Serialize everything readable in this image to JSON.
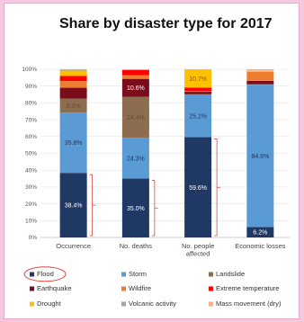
{
  "chart_data": {
    "type": "bar",
    "stacked": true,
    "title": "Share by disaster type for 2017",
    "xlabel": "",
    "ylabel": "",
    "ylim": [
      0,
      100
    ],
    "yticks": [
      "0%",
      "10%",
      "20%",
      "30%",
      "40%",
      "50%",
      "60%",
      "70%",
      "80%",
      "90%",
      "100%"
    ],
    "categories": [
      "Occurrence",
      "No. deaths",
      "No. people affected",
      "Economic losses"
    ],
    "series": [
      {
        "name": "Flood",
        "color": "#1f3864",
        "values": [
          38.4,
          35.0,
          59.6,
          6.2
        ],
        "labels": [
          "38.4%",
          "35.0%",
          "59.6%",
          "6.2%"
        ]
      },
      {
        "name": "Storm",
        "color": "#5b9bd5",
        "values": [
          35.8,
          24.3,
          25.2,
          84.6
        ],
        "labels": [
          "35.8%",
          "24.3%",
          "25.2%",
          "84.6%"
        ]
      },
      {
        "name": "Landslide",
        "color": "#8c6d4f",
        "values": [
          8.3,
          24.4,
          0.5,
          0.3
        ],
        "labels": [
          "8.3%",
          "24.4%",
          "",
          ""
        ]
      },
      {
        "name": "Earthquake",
        "color": "#7b0c1c",
        "values": [
          6.5,
          10.6,
          1.3,
          2.0
        ],
        "labels": [
          "",
          "10.6%",
          "",
          ""
        ]
      },
      {
        "name": "Wildfire",
        "color": "#ed7d31",
        "values": [
          4.0,
          2.2,
          0.5,
          5.4
        ],
        "labels": [
          "",
          "",
          "",
          ""
        ]
      },
      {
        "name": "Extreme temperature",
        "color": "#ff0000",
        "values": [
          3.0,
          3.0,
          2.0,
          0.0
        ],
        "labels": [
          "",
          "",
          "",
          ""
        ]
      },
      {
        "name": "Drought",
        "color": "#ffc000",
        "values": [
          3.2,
          0.0,
          10.7,
          0.5
        ],
        "labels": [
          "",
          "",
          "10.7%",
          ""
        ]
      },
      {
        "name": "Volcanic activity",
        "color": "#a5a5a5",
        "values": [
          0.6,
          0.3,
          0.1,
          0.0
        ],
        "labels": [
          "",
          "",
          "",
          ""
        ]
      },
      {
        "name": "Mass movement (dry)",
        "color": "#f4b183",
        "values": [
          0.2,
          0.2,
          0.1,
          1.0
        ],
        "labels": [
          "",
          "",
          "",
          ""
        ]
      }
    ],
    "highlighted_legend_entry": "Flood",
    "legend_position": "bottom"
  }
}
